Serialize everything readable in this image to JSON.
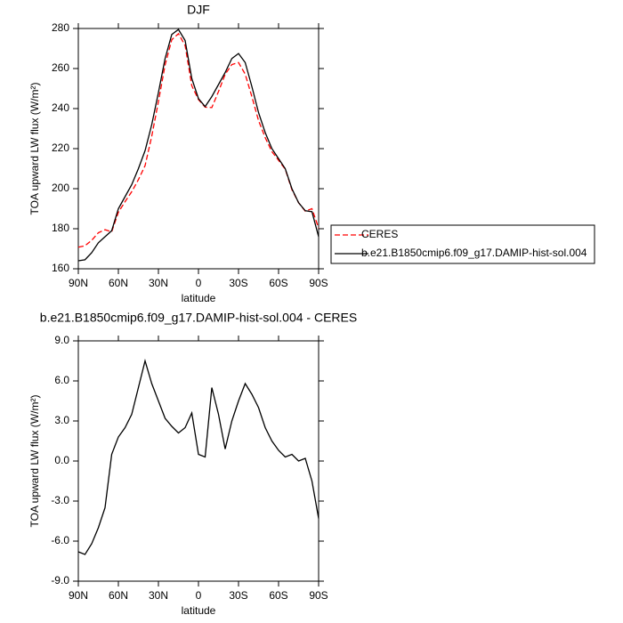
{
  "chart_data": [
    {
      "type": "line",
      "title": "DJF",
      "x_label": "latitude",
      "y_label": "TOA upward LW flux (W/m²)",
      "x": [
        90,
        85,
        80,
        75,
        70,
        65,
        60,
        55,
        50,
        45,
        40,
        35,
        30,
        25,
        20,
        15,
        10,
        5,
        0,
        -5,
        -10,
        -15,
        -20,
        -25,
        -30,
        -35,
        -40,
        -45,
        -50,
        -55,
        -60,
        -65,
        -70,
        -75,
        -80,
        -85,
        -90
      ],
      "xlim": [
        90,
        -90
      ],
      "xticks": [
        {
          "value": 90,
          "label": "90N"
        },
        {
          "value": 60,
          "label": "60N"
        },
        {
          "value": 30,
          "label": "30N"
        },
        0,
        {
          "value": -30,
          "label": "30S"
        },
        {
          "value": -60,
          "label": "60S"
        },
        {
          "value": -90,
          "label": "90S"
        }
      ],
      "ylim": [
        160,
        280
      ],
      "yticks": [
        160,
        180,
        200,
        220,
        240,
        260,
        280
      ],
      "series": [
        {
          "name": "CERES",
          "color": "#ff0000",
          "dashed": true,
          "values": [
            170.8,
            171.5,
            174.2,
            178,
            179.5,
            178.5,
            188.2,
            193.5,
            198.5,
            204.5,
            211.5,
            226.2,
            243.5,
            261.8,
            274.4,
            277.4,
            271.5,
            251.4,
            244.5,
            240.7,
            240.5,
            248.5,
            257.1,
            262,
            263,
            257.2,
            246,
            234,
            225.5,
            218.5,
            214.2,
            209.7,
            199.5,
            193,
            188.8,
            190,
            180.3
          ]
        },
        {
          "name": "b.e21.B1850cmip6.f09_g17.DAMIP-hist-sol.004",
          "color": "#000000",
          "dashed": false,
          "values": [
            164,
            164.5,
            168,
            173,
            176,
            179,
            190,
            196,
            202,
            210,
            219,
            232,
            248,
            265,
            277,
            279.5,
            274,
            255,
            245,
            241,
            246,
            252,
            258,
            265,
            267.5,
            263,
            251,
            238,
            228,
            220,
            215,
            210,
            200,
            193,
            189,
            188.5,
            176
          ]
        }
      ]
    },
    {
      "type": "line",
      "title": "b.e21.B1850cmip6.f09_g17.DAMIP-hist-sol.004 - CERES",
      "x_label": "latitude",
      "y_label": "TOA upward LW flux (W/m²)",
      "x": [
        90,
        85,
        80,
        75,
        70,
        65,
        60,
        55,
        50,
        45,
        40,
        35,
        30,
        25,
        20,
        15,
        10,
        5,
        0,
        -5,
        -10,
        -15,
        -20,
        -25,
        -30,
        -35,
        -40,
        -45,
        -50,
        -55,
        -60,
        -65,
        -70,
        -75,
        -80,
        -85,
        -90
      ],
      "xlim": [
        90,
        -90
      ],
      "xticks": [
        {
          "value": 90,
          "label": "90N"
        },
        {
          "value": 60,
          "label": "60N"
        },
        {
          "value": 30,
          "label": "30N"
        },
        0,
        {
          "value": -30,
          "label": "30S"
        },
        {
          "value": -60,
          "label": "60S"
        },
        {
          "value": -90,
          "label": "90S"
        }
      ],
      "ylim": [
        -9,
        9
      ],
      "yticks": [
        {
          "value": -9,
          "label": "-9.0"
        },
        {
          "value": -6,
          "label": "-6.0"
        },
        {
          "value": -3,
          "label": "-3.0"
        },
        {
          "value": 0,
          "label": "0.0"
        },
        {
          "value": 3,
          "label": "3.0"
        },
        {
          "value": 6,
          "label": "6.0"
        },
        {
          "value": 9,
          "label": "9.0"
        }
      ],
      "series": [
        {
          "color": "#000000",
          "dashed": false,
          "values": [
            -6.8,
            -7.0,
            -6.2,
            -5.0,
            -3.5,
            0.5,
            1.8,
            2.5,
            3.5,
            5.5,
            7.5,
            5.8,
            4.5,
            3.2,
            2.6,
            2.1,
            2.5,
            3.6,
            0.5,
            0.3,
            5.5,
            3.5,
            0.9,
            3.0,
            4.5,
            5.8,
            5.0,
            4.0,
            2.5,
            1.5,
            0.8,
            0.3,
            0.5,
            0.0,
            0.2,
            -1.5,
            -4.3
          ]
        }
      ]
    }
  ]
}
